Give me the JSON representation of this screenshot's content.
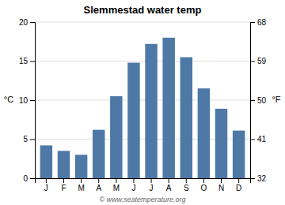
{
  "chart_data": {
    "type": "bar",
    "title": "Slemmestad water temp",
    "categories": [
      "J",
      "F",
      "M",
      "A",
      "M",
      "J",
      "J",
      "A",
      "S",
      "O",
      "N",
      "D"
    ],
    "values": [
      4.2,
      3.5,
      3.0,
      6.2,
      10.5,
      14.8,
      17.2,
      18.0,
      15.5,
      11.5,
      8.9,
      6.1
    ],
    "ylabel": "°C",
    "y2label": "°F",
    "ylim": [
      0,
      20
    ],
    "yticks": [
      0,
      5,
      10,
      15,
      20
    ],
    "y2lim": [
      32,
      68
    ],
    "y2ticks": [
      32,
      41,
      50,
      59,
      68
    ],
    "grid": true,
    "annotations": [
      "© www.seatemperature.org"
    ]
  }
}
